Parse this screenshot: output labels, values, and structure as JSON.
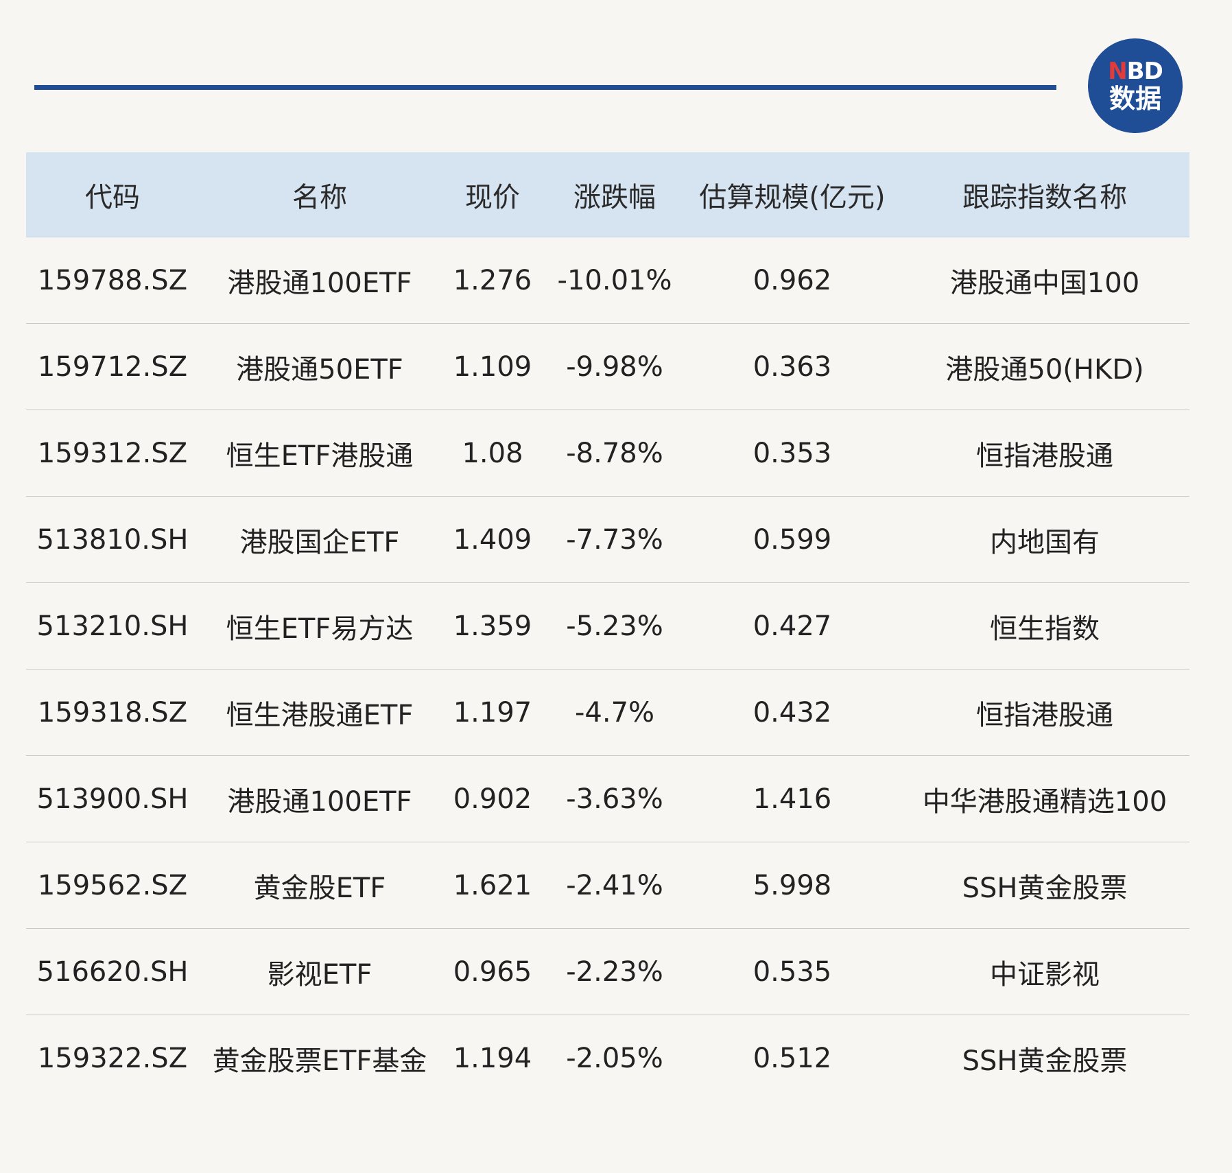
{
  "logo": {
    "text_top": "NBD",
    "text_bottom": "数据",
    "brand_blue": "#1f4e96",
    "accent_red": "#e23b3b"
  },
  "table": {
    "header_background": "#d6e3f1",
    "columns": [
      "代码",
      "名称",
      "现价",
      "涨跌幅",
      "估算规模(亿元)",
      "跟踪指数名称"
    ],
    "rows": [
      {
        "code": "159788.SZ",
        "name": "港股通100ETF",
        "price": "1.276",
        "change": "-10.01%",
        "scale": "0.962",
        "index": "港股通中国100"
      },
      {
        "code": "159712.SZ",
        "name": "港股通50ETF",
        "price": "1.109",
        "change": "-9.98%",
        "scale": "0.363",
        "index": "港股通50(HKD)"
      },
      {
        "code": "159312.SZ",
        "name": "恒生ETF港股通",
        "price": "1.08",
        "change": "-8.78%",
        "scale": "0.353",
        "index": "恒指港股通"
      },
      {
        "code": "513810.SH",
        "name": "港股国企ETF",
        "price": "1.409",
        "change": "-7.73%",
        "scale": "0.599",
        "index": "内地国有"
      },
      {
        "code": "513210.SH",
        "name": "恒生ETF易方达",
        "price": "1.359",
        "change": "-5.23%",
        "scale": "0.427",
        "index": "恒生指数"
      },
      {
        "code": "159318.SZ",
        "name": "恒生港股通ETF",
        "price": "1.197",
        "change": "-4.7%",
        "scale": "0.432",
        "index": "恒指港股通"
      },
      {
        "code": "513900.SH",
        "name": "港股通100ETF",
        "price": "0.902",
        "change": "-3.63%",
        "scale": "1.416",
        "index": "中华港股通精选100"
      },
      {
        "code": "159562.SZ",
        "name": "黄金股ETF",
        "price": "1.621",
        "change": "-2.41%",
        "scale": "5.998",
        "index": "SSH黄金股票"
      },
      {
        "code": "516620.SH",
        "name": "影视ETF",
        "price": "0.965",
        "change": "-2.23%",
        "scale": "0.535",
        "index": "中证影视"
      },
      {
        "code": "159322.SZ",
        "name": "黄金股票ETF基金",
        "price": "1.194",
        "change": "-2.05%",
        "scale": "0.512",
        "index": "SSH黄金股票"
      }
    ]
  }
}
